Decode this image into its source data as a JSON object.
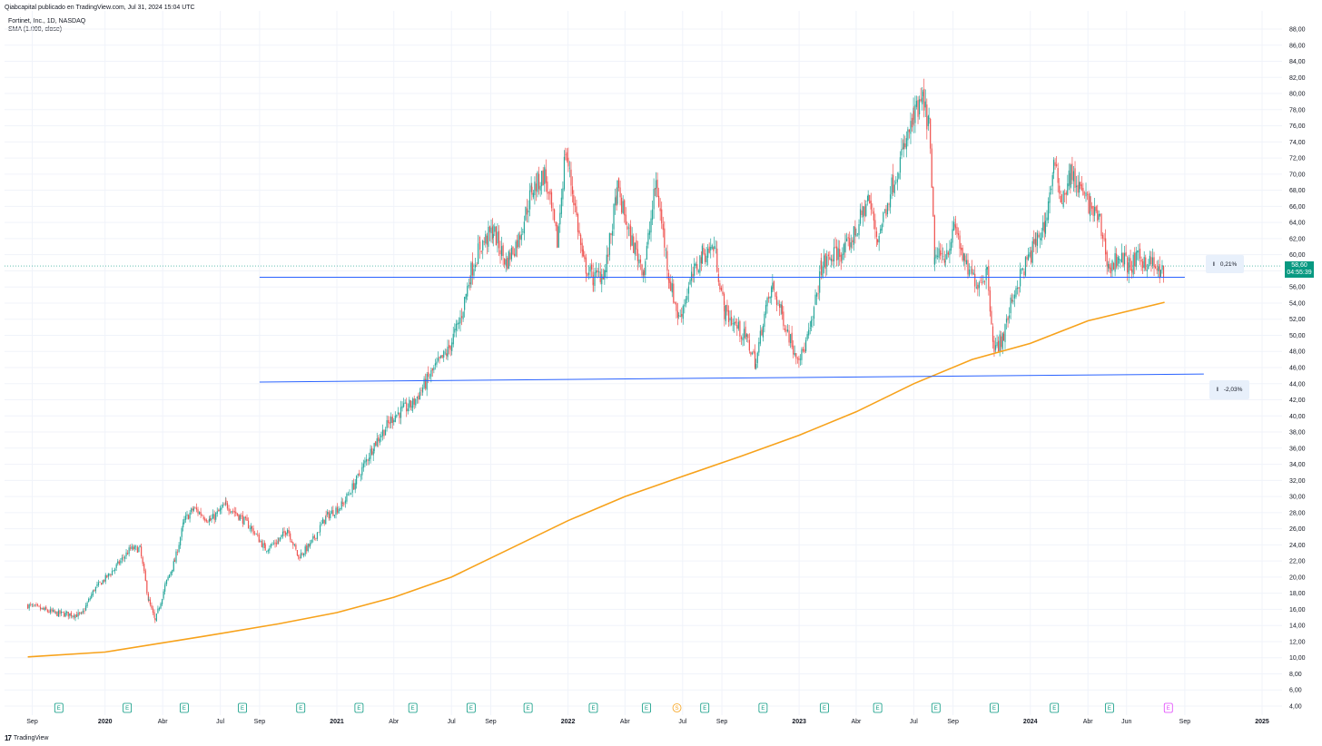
{
  "header": {
    "publisher": "Qiabcapital publicado en TradingView.com, Jul 31, 2024 15:04 UTC",
    "symbol_line": "Fortinet, Inc., 1D, NASDAQ",
    "indicator_line": "SMA (1.000, close)"
  },
  "footer": {
    "brand": "TradingView",
    "logo_text": "17"
  },
  "price_label": {
    "price": "58,60",
    "countdown": "04:55:39",
    "color": "#089981"
  },
  "measures": [
    {
      "icon": "I",
      "value": "0,21%"
    },
    {
      "icon": "I",
      "value": "-2,03%"
    }
  ],
  "colors": {
    "up": "#26a69a",
    "down": "#ef5350",
    "sma": "#f7a21b",
    "trendline": "#2962ff",
    "earnings": "#089981",
    "dividend": "#f7a21b",
    "upcoming_earnings": "#e040fb"
  },
  "chart_data": {
    "type": "candlestick",
    "symbol": "Fortinet, Inc.",
    "interval": "1D",
    "exchange": "NASDAQ",
    "ylim": [
      4,
      88
    ],
    "y_ticks": [
      "88,00",
      "86,00",
      "84,00",
      "82,00",
      "80,00",
      "78,00",
      "76,00",
      "74,00",
      "72,00",
      "70,00",
      "68,00",
      "66,00",
      "64,00",
      "62,00",
      "60,00",
      "58,00",
      "56,00",
      "54,00",
      "52,00",
      "50,00",
      "48,00",
      "46,00",
      "44,00",
      "42,00",
      "40,00",
      "38,00",
      "36,00",
      "34,00",
      "32,00",
      "30,00",
      "28,00",
      "26,00",
      "24,00",
      "22,00",
      "20,00",
      "18,00",
      "16,00",
      "14,00",
      "12,00",
      "10,00",
      "8,00",
      "6,00",
      "4,00"
    ],
    "x_ticks": [
      {
        "label": "Sep",
        "bold": false
      },
      {
        "label": "2020",
        "bold": true
      },
      {
        "label": "Abr",
        "bold": false
      },
      {
        "label": "Jul",
        "bold": false
      },
      {
        "label": "Sep",
        "bold": false
      },
      {
        "label": "2021",
        "bold": true
      },
      {
        "label": "Abr",
        "bold": false
      },
      {
        "label": "Jul",
        "bold": false
      },
      {
        "label": "Sep",
        "bold": false
      },
      {
        "label": "2022",
        "bold": true
      },
      {
        "label": "Abr",
        "bold": false
      },
      {
        "label": "Jul",
        "bold": false
      },
      {
        "label": "Sep",
        "bold": false
      },
      {
        "label": "2023",
        "bold": true
      },
      {
        "label": "Abr",
        "bold": false
      },
      {
        "label": "Jul",
        "bold": false
      },
      {
        "label": "Sep",
        "bold": false
      },
      {
        "label": "2024",
        "bold": true
      },
      {
        "label": "Abr",
        "bold": false
      },
      {
        "label": "Jun",
        "bold": false
      },
      {
        "label": "Sep",
        "bold": false
      },
      {
        "label": "2025",
        "bold": true
      }
    ],
    "price_path": [
      [
        "2019-09-01",
        16.5
      ],
      [
        "2019-10-15",
        15.5
      ],
      [
        "2019-11-25",
        15.3
      ],
      [
        "2019-12-15",
        18.5
      ],
      [
        "2020-01-10",
        20.5
      ],
      [
        "2020-02-10",
        23.5
      ],
      [
        "2020-02-25",
        23.5
      ],
      [
        "2020-03-10",
        17.0
      ],
      [
        "2020-03-20",
        14.5
      ],
      [
        "2020-04-05",
        19.0
      ],
      [
        "2020-04-20",
        22.0
      ],
      [
        "2020-05-05",
        27.0
      ],
      [
        "2020-05-20",
        28.5
      ],
      [
        "2020-06-15",
        27.0
      ],
      [
        "2020-07-10",
        29.0
      ],
      [
        "2020-08-01",
        27.5
      ],
      [
        "2020-08-20",
        26.0
      ],
      [
        "2020-09-10",
        23.5
      ],
      [
        "2020-10-01",
        24.5
      ],
      [
        "2020-10-15",
        26.0
      ],
      [
        "2020-11-01",
        22.5
      ],
      [
        "2020-11-20",
        24.0
      ],
      [
        "2020-12-15",
        27.5
      ],
      [
        "2021-01-10",
        29.0
      ],
      [
        "2021-02-01",
        32.0
      ],
      [
        "2021-03-01",
        36.5
      ],
      [
        "2021-04-01",
        40.0
      ],
      [
        "2021-05-01",
        41.5
      ],
      [
        "2021-06-01",
        45.5
      ],
      [
        "2021-06-25",
        48.0
      ],
      [
        "2021-07-15",
        52.0
      ],
      [
        "2021-08-01",
        58.0
      ],
      [
        "2021-08-15",
        61.0
      ],
      [
        "2021-09-05",
        63.0
      ],
      [
        "2021-09-25",
        59.0
      ],
      [
        "2021-10-15",
        62.0
      ],
      [
        "2021-11-05",
        68.0
      ],
      [
        "2021-11-25",
        70.0
      ],
      [
        "2021-12-15",
        61.5
      ],
      [
        "2021-12-28",
        73.0
      ],
      [
        "2022-01-10",
        67.0
      ],
      [
        "2022-01-25",
        59.0
      ],
      [
        "2022-02-10",
        57.0
      ],
      [
        "2022-03-01",
        58.0
      ],
      [
        "2022-03-20",
        68.0
      ],
      [
        "2022-04-10",
        62.0
      ],
      [
        "2022-05-01",
        58.0
      ],
      [
        "2022-05-20",
        69.0
      ],
      [
        "2022-06-10",
        57.0
      ],
      [
        "2022-06-25",
        52.0
      ],
      [
        "2022-07-15",
        57.0
      ],
      [
        "2022-08-01",
        60.0
      ],
      [
        "2022-08-20",
        61.0
      ],
      [
        "2022-09-05",
        53.0
      ],
      [
        "2022-09-25",
        51.0
      ],
      [
        "2022-10-10",
        49.5
      ],
      [
        "2022-10-25",
        46.5
      ],
      [
        "2022-11-05",
        52.0
      ],
      [
        "2022-11-20",
        56.0
      ],
      [
        "2022-12-05",
        52.5
      ],
      [
        "2022-12-25",
        48.0
      ],
      [
        "2023-01-05",
        47.5
      ],
      [
        "2023-01-20",
        51.0
      ],
      [
        "2023-02-05",
        58.5
      ],
      [
        "2023-02-25",
        60.0
      ],
      [
        "2023-03-15",
        60.5
      ],
      [
        "2023-04-01",
        63.0
      ],
      [
        "2023-04-20",
        67.0
      ],
      [
        "2023-05-05",
        62.0
      ],
      [
        "2023-05-25",
        68.0
      ],
      [
        "2023-06-15",
        73.0
      ],
      [
        "2023-07-01",
        77.0
      ],
      [
        "2023-07-15",
        79.0
      ],
      [
        "2023-07-25",
        76.0
      ],
      [
        "2023-08-03",
        59.5
      ],
      [
        "2023-08-20",
        60.0
      ],
      [
        "2023-09-05",
        63.5
      ],
      [
        "2023-09-20",
        58.5
      ],
      [
        "2023-10-10",
        56.5
      ],
      [
        "2023-10-25",
        58.0
      ],
      [
        "2023-11-05",
        48.0
      ],
      [
        "2023-11-20",
        50.0
      ],
      [
        "2023-12-05",
        55.0
      ],
      [
        "2023-12-20",
        58.0
      ],
      [
        "2024-01-10",
        61.5
      ],
      [
        "2024-01-25",
        64.0
      ],
      [
        "2024-02-07",
        71.0
      ],
      [
        "2024-02-20",
        67.0
      ],
      [
        "2024-03-05",
        70.0
      ],
      [
        "2024-03-20",
        68.0
      ],
      [
        "2024-04-05",
        66.0
      ],
      [
        "2024-04-20",
        64.0
      ],
      [
        "2024-05-05",
        58.0
      ],
      [
        "2024-05-20",
        60.0
      ],
      [
        "2024-06-05",
        58.5
      ],
      [
        "2024-06-20",
        59.5
      ],
      [
        "2024-07-10",
        59.0
      ],
      [
        "2024-07-25",
        57.5
      ],
      [
        "2024-07-31",
        58.6
      ]
    ],
    "sma": [
      [
        "2019-09-01",
        10.1
      ],
      [
        "2020-01-01",
        10.7
      ],
      [
        "2020-06-01",
        12.6
      ],
      [
        "2020-10-01",
        14.2
      ],
      [
        "2021-01-01",
        15.6
      ],
      [
        "2021-04-01",
        17.5
      ],
      [
        "2021-07-01",
        20.0
      ],
      [
        "2021-10-01",
        23.5
      ],
      [
        "2022-01-01",
        27.0
      ],
      [
        "2022-04-01",
        30.0
      ],
      [
        "2022-07-01",
        32.5
      ],
      [
        "2022-10-01",
        35.0
      ],
      [
        "2023-01-01",
        37.6
      ],
      [
        "2023-04-01",
        40.5
      ],
      [
        "2023-07-01",
        44.0
      ],
      [
        "2023-10-01",
        47.0
      ],
      [
        "2024-01-01",
        49.0
      ],
      [
        "2024-04-01",
        51.8
      ],
      [
        "2024-07-31",
        54.1
      ]
    ],
    "trendlines": [
      {
        "from": [
          "2020-09-01",
          57.2
        ],
        "to": [
          "2024-09-01",
          57.2
        ]
      },
      {
        "from": [
          "2020-09-01",
          44.2
        ],
        "to": [
          "2024-10-01",
          45.2
        ]
      }
    ],
    "last_price": 58.6,
    "events": [
      {
        "date": "2019-10-20",
        "type": "E"
      },
      {
        "date": "2020-02-05",
        "type": "E"
      },
      {
        "date": "2020-05-05",
        "type": "E"
      },
      {
        "date": "2020-08-05",
        "type": "E"
      },
      {
        "date": "2020-11-05",
        "type": "E"
      },
      {
        "date": "2021-02-05",
        "type": "E"
      },
      {
        "date": "2021-05-01",
        "type": "E"
      },
      {
        "date": "2021-08-01",
        "type": "E"
      },
      {
        "date": "2021-10-30",
        "type": "E"
      },
      {
        "date": "2022-02-10",
        "type": "E"
      },
      {
        "date": "2022-05-05",
        "type": "E"
      },
      {
        "date": "2022-06-22",
        "type": "S"
      },
      {
        "date": "2022-08-05",
        "type": "E"
      },
      {
        "date": "2022-11-05",
        "type": "E"
      },
      {
        "date": "2023-02-10",
        "type": "E"
      },
      {
        "date": "2023-05-05",
        "type": "E"
      },
      {
        "date": "2023-08-05",
        "type": "E"
      },
      {
        "date": "2023-11-05",
        "type": "E"
      },
      {
        "date": "2024-02-08",
        "type": "E"
      },
      {
        "date": "2024-05-05",
        "type": "E"
      },
      {
        "date": "2024-08-06",
        "type": "E-upcoming"
      }
    ],
    "grid": true
  }
}
